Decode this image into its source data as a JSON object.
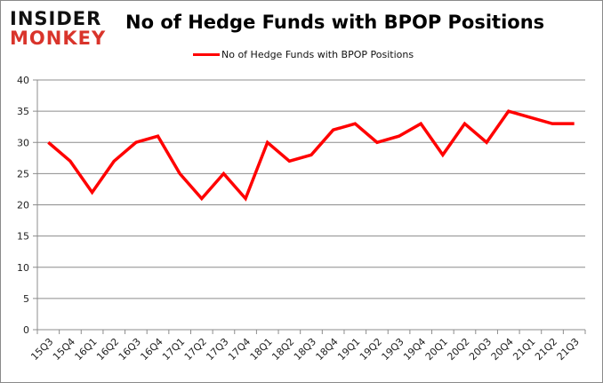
{
  "logo": {
    "line1": "INSIDER",
    "line2": "MONKEY"
  },
  "chart_data": {
    "type": "line",
    "title": "No of Hedge Funds with BPOP Positions",
    "xlabel": "",
    "ylabel": "",
    "ylim": [
      0,
      40
    ],
    "yticks": [
      0,
      5,
      10,
      15,
      20,
      25,
      30,
      35,
      40
    ],
    "grid": true,
    "legend": "top-center",
    "categories": [
      "15Q3",
      "15Q4",
      "16Q1",
      "16Q2",
      "16Q3",
      "16Q4",
      "17Q1",
      "17Q2",
      "17Q3",
      "17Q4",
      "18Q1",
      "18Q2",
      "18Q3",
      "18Q4",
      "19Q1",
      "19Q2",
      "19Q3",
      "19Q4",
      "20Q1",
      "20Q2",
      "20Q3",
      "20Q4",
      "21Q1",
      "21Q2",
      "21Q3"
    ],
    "series": [
      {
        "name": "No of Hedge Funds with BPOP Positions",
        "color": "#ff0000",
        "values": [
          30,
          27,
          22,
          27,
          30,
          31,
          25,
          21,
          25,
          21,
          30,
          27,
          28,
          32,
          33,
          30,
          31,
          33,
          28,
          33,
          30,
          35,
          34,
          33,
          33
        ]
      }
    ]
  }
}
